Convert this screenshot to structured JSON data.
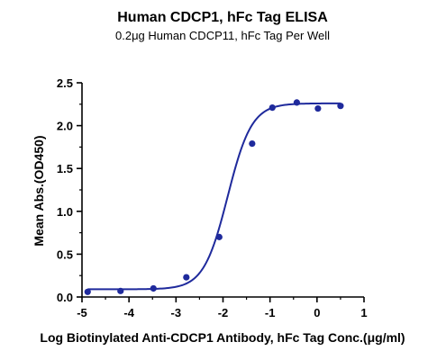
{
  "chart_data": {
    "type": "scatter",
    "title": "Human CDCP1, hFc Tag ELISA",
    "subtitle": "0.2μg Human CDCP11, hFc Tag Per Well",
    "xlabel": "Log Biotinylated Anti-CDCP1 Antibody, hFc Tag Conc.(μg/ml)",
    "ylabel": "Mean Abs.(OD450)",
    "xlim": [
      -5,
      1
    ],
    "ylim": [
      0,
      2.5
    ],
    "xticks": [
      "-5",
      "-4",
      "-3",
      "-2",
      "-1",
      "0",
      "1"
    ],
    "yticks": [
      "0.0",
      "0.5",
      "1.0",
      "1.5",
      "2.0",
      "2.5"
    ],
    "grid": false,
    "colors": {
      "series": "#1f2a9c",
      "axis": "#000000"
    },
    "series": [
      {
        "points": [
          {
            "x": -4.88,
            "y": 0.06
          },
          {
            "x": -4.18,
            "y": 0.07
          },
          {
            "x": -3.48,
            "y": 0.1
          },
          {
            "x": -2.78,
            "y": 0.23
          },
          {
            "x": -2.08,
            "y": 0.7
          },
          {
            "x": -1.38,
            "y": 1.79
          },
          {
            "x": -0.95,
            "y": 2.21
          },
          {
            "x": -0.43,
            "y": 2.27
          },
          {
            "x": 0.02,
            "y": 2.2
          },
          {
            "x": 0.5,
            "y": 2.23
          }
        ],
        "fit": {
          "model": "4PL",
          "bottom": 0.09,
          "top": 2.26,
          "logEC50": -1.9,
          "hill": 1.7
        }
      }
    ]
  }
}
